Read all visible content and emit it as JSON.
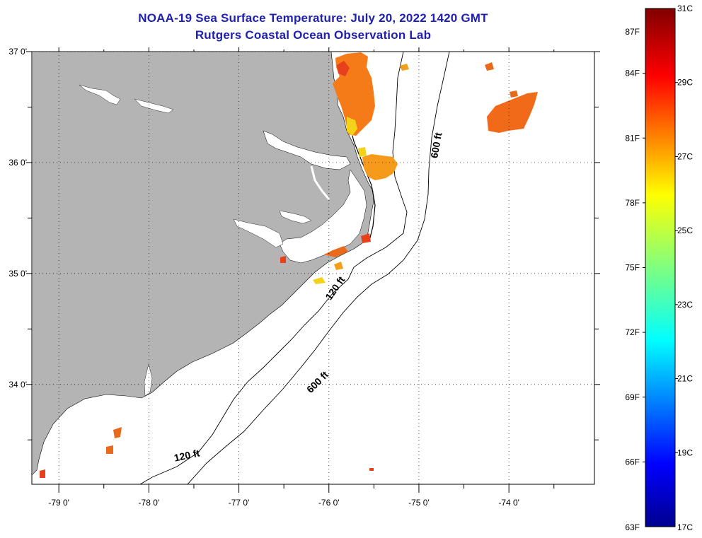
{
  "title": "NOAA-19 Sea Surface Temperature:  July 20, 2022 1420 GMT",
  "subtitle": "Rutgers Coastal Ocean Observation Lab",
  "map": {
    "lon_range": [
      -79.3,
      -73.05
    ],
    "lat_range": [
      33.1,
      37.0
    ],
    "lon_labels": [
      {
        "lon": -79,
        "text": "-79 0'"
      },
      {
        "lon": -78,
        "text": "-78 0'"
      },
      {
        "lon": -77,
        "text": "-77 0'"
      },
      {
        "lon": -76,
        "text": "-76 0'"
      },
      {
        "lon": -75,
        "text": "-75 0'"
      },
      {
        "lon": -74,
        "text": "-74 0'"
      }
    ],
    "lat_labels": [
      {
        "lat": 37,
        "text": "37 0'"
      },
      {
        "lat": 36,
        "text": "36 0'"
      },
      {
        "lat": 35,
        "text": "35 0'"
      },
      {
        "lat": 34,
        "text": "34 0'"
      }
    ],
    "land_color": "#b4b4b4",
    "contour_labels": [
      {
        "text": "600 ft",
        "lon": -74.77,
        "lat": 36.15,
        "angle": -80
      },
      {
        "text": "120 ft",
        "lon": -75.9,
        "lat": 34.85,
        "angle": -55
      },
      {
        "text": "600 ft",
        "lon": -76.1,
        "lat": 34.0,
        "angle": -45
      },
      {
        "text": "120 ft",
        "lon": -77.57,
        "lat": 33.33,
        "angle": -12
      }
    ]
  },
  "colorbar": {
    "f_labels": [
      "87F",
      "84F",
      "81F",
      "78F",
      "75F",
      "72F",
      "69F",
      "66F",
      "63F"
    ],
    "c_labels": [
      "31C",
      "29C",
      "27C",
      "25C",
      "23C",
      "21C",
      "19C",
      "17C"
    ],
    "range_c": [
      17,
      31
    ]
  }
}
